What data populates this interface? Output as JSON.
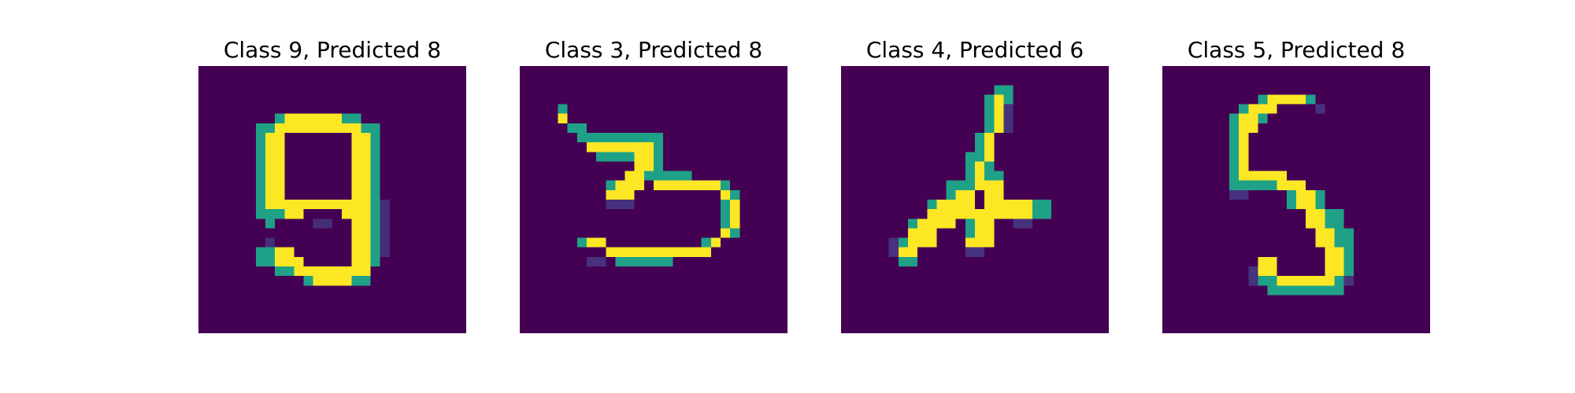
{
  "colors": {
    "background": "#440154",
    "low": "#46327e",
    "mid": "#1fa187",
    "high": "#fde725"
  },
  "panels": [
    {
      "title": "Class 9, Predicted 8",
      "digit_glyph": "9"
    },
    {
      "title": "Class 3, Predicted 8",
      "digit_glyph": "3"
    },
    {
      "title": "Class 4, Predicted 6",
      "digit_glyph": "4"
    },
    {
      "title": "Class 5, Predicted 8",
      "digit_glyph": "5"
    }
  ]
}
